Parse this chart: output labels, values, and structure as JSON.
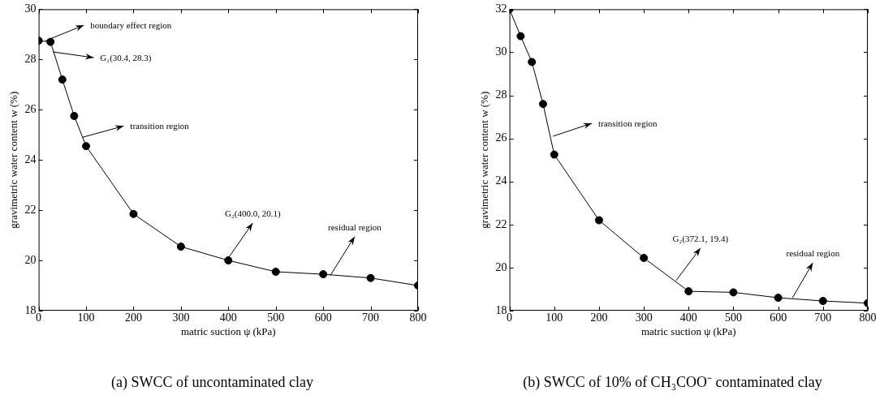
{
  "chart_data": [
    {
      "type": "line",
      "title": "(a) SWCC of uncontaminated clay",
      "xlabel": "matric suction ψ (kPa)",
      "ylabel": "gravimetric water content w (%)",
      "x": [
        0,
        25,
        50,
        75,
        100,
        200,
        300,
        400,
        500,
        600,
        700,
        800
      ],
      "series": [
        {
          "color": "#000000",
          "values": [
            28.75,
            28.7,
            27.2,
            25.75,
            24.55,
            21.85,
            20.55,
            20.0,
            19.55,
            19.45,
            19.3,
            19.0
          ]
        }
      ],
      "xlim": [
        0,
        800
      ],
      "xticks": [
        0,
        100,
        200,
        300,
        400,
        500,
        600,
        700,
        800
      ],
      "ylim": [
        18,
        30
      ],
      "yticks": [
        18,
        20,
        22,
        24,
        26,
        28,
        30
      ],
      "marker": "circle",
      "line_style": "solid",
      "annotations": [
        {
          "text": "boundary effect region",
          "x": 15,
          "y": 28.75
        },
        {
          "text": "G₁(30.4, 28.3)",
          "x": 30.4,
          "y": 28.3
        },
        {
          "text": "transition region",
          "x": 92,
          "y": 24.9
        },
        {
          "text": "G₂(400.0, 20.1)",
          "x": 400.0,
          "y": 20.1
        },
        {
          "text": "residual region",
          "x": 615,
          "y": 19.4
        }
      ]
    },
    {
      "type": "line",
      "title": "(b) SWCC of 10% of CH₃COO⁻ contaminated clay",
      "xlabel": "matric suction ψ (kPa)",
      "ylabel": "gravimetric water content w (%)",
      "x": [
        0,
        25,
        50,
        75,
        100,
        200,
        300,
        400,
        500,
        600,
        700,
        800
      ],
      "series": [
        {
          "color": "#000000",
          "values": [
            32.0,
            30.75,
            29.55,
            27.6,
            25.25,
            22.2,
            20.45,
            18.9,
            18.85,
            18.6,
            18.45,
            18.35
          ]
        }
      ],
      "xlim": [
        0,
        800
      ],
      "xticks": [
        0,
        100,
        200,
        300,
        400,
        500,
        600,
        700,
        800
      ],
      "ylim": [
        18,
        32
      ],
      "yticks": [
        18,
        20,
        22,
        24,
        26,
        28,
        30,
        32
      ],
      "marker": "circle",
      "line_style": "solid",
      "annotations": [
        {
          "text": "transition region",
          "x": 97,
          "y": 26.1
        },
        {
          "text": "G₂(372.1, 19.4)",
          "x": 372.1,
          "y": 19.4
        },
        {
          "text": "residual region",
          "x": 632,
          "y": 18.6
        }
      ]
    }
  ]
}
